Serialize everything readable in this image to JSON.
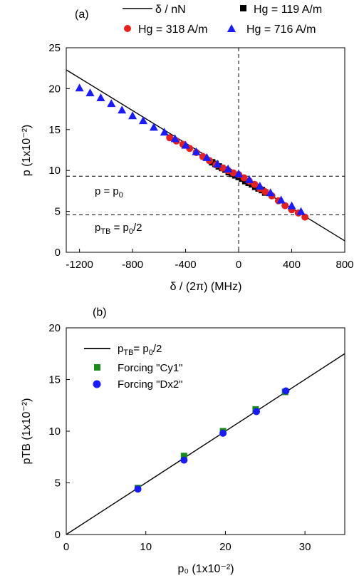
{
  "chart_data": [
    {
      "panel_label": "(a)",
      "type": "scatter",
      "xlabel": "δ / (2π) (MHz)",
      "ylabel": "p (1x10⁻²)",
      "xlim": [
        -1300,
        800
      ],
      "ylim": [
        0,
        25
      ],
      "xticks": [
        "-1200",
        "-800",
        "-400",
        "0",
        "400",
        "800"
      ],
      "yticks": [
        "0",
        "5",
        "10",
        "15",
        "20",
        "25"
      ],
      "legend": {
        "line": "δ / nN",
        "h119": "Hg = 119 A/m",
        "h318": "Hg = 318 A/m",
        "h716": "Hg = 716 A/m"
      },
      "legend_placement": "above plot",
      "colors": {
        "h119": "#000000",
        "h318": "#e8201c",
        "h716": "#1a1aff",
        "line": "#000000"
      },
      "fit_line": {
        "x": [
          -1300,
          800
        ],
        "y": [
          22.3,
          1.4
        ]
      },
      "reference_lines": [
        {
          "label": "p = p₀",
          "y": 9.3,
          "style": "dashed"
        },
        {
          "label": "pTB = p₀/2",
          "y": 4.6,
          "style": "dashed"
        },
        {
          "x": 0,
          "style": "dashed"
        }
      ],
      "annotations": {
        "p_eq_p0": "p = p₀",
        "ptb_eq": "pTB = p₀/2"
      },
      "series": [
        {
          "name": "Hg = 119 A/m",
          "marker": "square",
          "x": [
            -200,
            -175,
            -150,
            -125,
            -100,
            -75,
            -50,
            -25,
            0,
            25,
            50,
            75,
            100,
            125,
            150,
            175,
            200
          ],
          "y": [
            11.0,
            10.8,
            10.5,
            10.3,
            10.1,
            9.8,
            9.6,
            9.4,
            9.2,
            9.0,
            8.7,
            8.5,
            8.3,
            8.0,
            7.8,
            7.6,
            7.3
          ]
        },
        {
          "name": "Hg = 318 A/m",
          "marker": "circle",
          "x": [
            -520,
            -470,
            -420,
            -370,
            -320,
            -270,
            -220,
            -170,
            -120,
            -80,
            -40,
            0,
            40,
            80,
            120,
            160,
            200,
            250,
            300,
            350,
            400,
            450,
            500
          ],
          "y": [
            14.0,
            13.6,
            13.2,
            12.7,
            12.2,
            11.7,
            11.2,
            10.7,
            10.3,
            10.0,
            9.7,
            9.5,
            9.1,
            8.7,
            8.3,
            7.8,
            7.4,
            6.9,
            6.3,
            5.7,
            5.2,
            4.8,
            4.3
          ]
        },
        {
          "name": "Hg = 716 A/m",
          "marker": "triangle",
          "x": [
            -1200,
            -1120,
            -1040,
            -960,
            -880,
            -800,
            -720,
            -640,
            -560,
            -480,
            -400,
            -320,
            -240,
            -160,
            -80,
            0,
            80,
            160,
            240,
            320,
            400,
            470
          ],
          "y": [
            20.1,
            19.5,
            18.9,
            18.2,
            17.4,
            16.7,
            16.1,
            15.3,
            14.7,
            13.9,
            13.1,
            12.3,
            11.6,
            10.8,
            10.2,
            9.6,
            8.9,
            8.1,
            7.3,
            6.4,
            5.7,
            5.0
          ]
        }
      ]
    },
    {
      "panel_label": "(b)",
      "type": "scatter",
      "xlabel": "p₀ (1x10⁻²)",
      "ylabel": "pTB (1x10⁻²)",
      "xlim": [
        0,
        35
      ],
      "ylim": [
        0,
        20
      ],
      "xticks": [
        "0",
        "10",
        "20",
        "30"
      ],
      "yticks": [
        "0",
        "5",
        "10",
        "15",
        "20"
      ],
      "legend": {
        "line": "pTB= p₀/2",
        "cy1": "Forcing \"Cy1\"",
        "dx2": "Forcing \"Dx2\""
      },
      "legend_placement": "top-left",
      "colors": {
        "cy1": "#1a8a1a",
        "dx2": "#1a1aff",
        "line": "#000000"
      },
      "fit_line": {
        "x": [
          0,
          35
        ],
        "y": [
          0,
          17.5
        ]
      },
      "series": [
        {
          "name": "Forcing \"Cy1\"",
          "marker": "square",
          "x": [
            9.0,
            14.8,
            19.7,
            23.8,
            27.5
          ],
          "y": [
            4.5,
            7.6,
            10.0,
            12.1,
            13.8
          ]
        },
        {
          "name": "Forcing \"Dx2\"",
          "marker": "circle",
          "x": [
            9.0,
            14.8,
            19.7,
            23.9,
            27.6
          ],
          "y": [
            4.4,
            7.2,
            9.8,
            11.9,
            13.9
          ]
        }
      ]
    }
  ]
}
